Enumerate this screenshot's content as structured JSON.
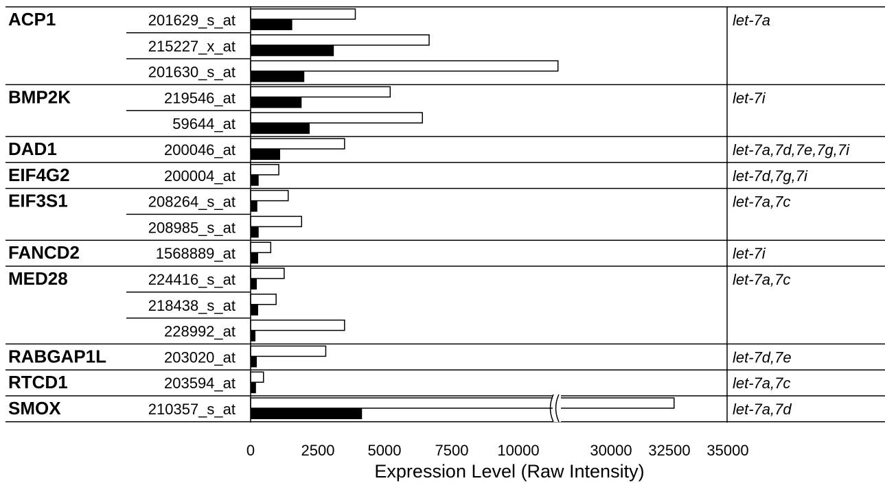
{
  "chart_data": {
    "type": "bar",
    "orientation": "horizontal",
    "xlabel": "Expression Level (Raw Intensity)",
    "x_ticks": [
      "0",
      "2500",
      "5000",
      "7500",
      "10000",
      "30000",
      "32500",
      "35000"
    ],
    "axis_break": {
      "from": 11500,
      "to": 28500
    },
    "genes": [
      {
        "gene": "ACP1",
        "mirna": "let-7a",
        "probes": [
          {
            "probe": "201629_s_at",
            "open": 3900,
            "filled": 1550
          },
          {
            "probe": "215227_x_at",
            "open": 6650,
            "filled": 3100
          },
          {
            "probe": "201630_s_at",
            "open": 11450,
            "filled": 2000
          }
        ]
      },
      {
        "gene": "BMP2K",
        "mirna": "let-7i",
        "probes": [
          {
            "probe": "219546_at",
            "open": 5200,
            "filled": 1900
          },
          {
            "probe": "59644_at",
            "open": 6400,
            "filled": 2200
          }
        ]
      },
      {
        "gene": "DAD1",
        "mirna": "let-7a,7d,7e,7g,7i",
        "probes": [
          {
            "probe": "200046_at",
            "open": 3500,
            "filled": 1100
          }
        ]
      },
      {
        "gene": "EIF4G2",
        "mirna": "let-7d,7g,7i",
        "probes": [
          {
            "probe": "200004_at",
            "open": 1050,
            "filled": 300
          }
        ]
      },
      {
        "gene": "EIF3S1",
        "mirna": "let-7a,7c",
        "probes": [
          {
            "probe": "208264_s_at",
            "open": 1400,
            "filled": 250
          },
          {
            "probe": "208985_s_at",
            "open": 1900,
            "filled": 300
          }
        ]
      },
      {
        "gene": "FANCD2",
        "mirna": "let-7i",
        "probes": [
          {
            "probe": "1568889_at",
            "open": 750,
            "filled": 280
          }
        ]
      },
      {
        "gene": "MED28",
        "mirna": "let-7a,7c",
        "probes": [
          {
            "probe": "224416_s_at",
            "open": 1250,
            "filled": 230
          },
          {
            "probe": "218438_s_at",
            "open": 950,
            "filled": 280
          },
          {
            "probe": "228992_at",
            "open": 3500,
            "filled": 180
          }
        ]
      },
      {
        "gene": "RABGAP1L",
        "mirna": "let-7d,7e",
        "probes": [
          {
            "probe": "203020_at",
            "open": 2800,
            "filled": 230
          }
        ]
      },
      {
        "gene": "RTCD1",
        "mirna": "let-7a,7c",
        "probes": [
          {
            "probe": "203594_at",
            "open": 480,
            "filled": 200
          }
        ]
      },
      {
        "gene": "SMOX",
        "mirna": "let-7a,7d",
        "probes": [
          {
            "probe": "210357_s_at",
            "open": 32700,
            "filled": 4150
          }
        ]
      }
    ]
  }
}
